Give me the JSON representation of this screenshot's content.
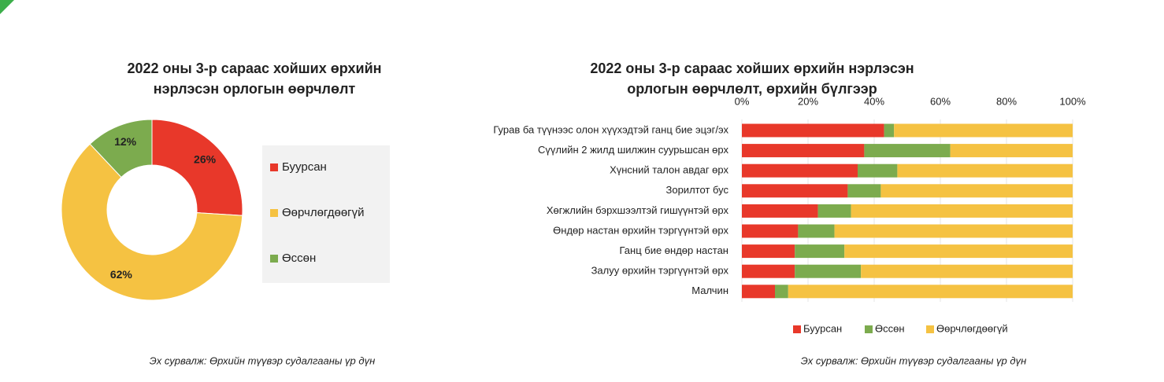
{
  "chart_data": [
    {
      "type": "donut",
      "title": "2022 оны 3-р сараас хойших өрхийн\nнэрлэсэн орлогын өөрчлөлт",
      "categories": [
        "Буурсан",
        "Өөрчлөгдөөгүй",
        "Өссөн"
      ],
      "values": [
        26,
        62,
        12
      ],
      "value_labels": [
        "26%",
        "62%",
        "12%"
      ],
      "colors": [
        "#e8382a",
        "#f5c242",
        "#7cab4e"
      ],
      "source": "Эх сурвалж: Өрхийн түүвэр  судалгааны үр дүн"
    },
    {
      "type": "stacked_barh",
      "title": "2022 оны 3-р сараас хойших өрхийн нэрлэсэн\nорлогын өөрчлөлт, өрхийн бүлгээр",
      "categories": [
        "Гурав ба түүнээс олон хүүхэдтэй ганц бие эцэг/эх",
        "Сүүлийн 2 жилд шилжин суурьшсан өрх",
        "Хүнсний талон авдаг өрх",
        "Зорилтот бус",
        "Хөгжлийн бэрхшээлтэй гишүүнтэй өрх",
        "Өндөр настан өрхийн тэргүүнтэй өрх",
        "Ганц бие өндөр настан",
        "Залуу өрхийн тэргүүнтэй өрх",
        "Малчин"
      ],
      "series": [
        {
          "name": "Буурсан",
          "color": "#e8382a",
          "values": [
            43,
            37,
            35,
            32,
            23,
            17,
            16,
            16,
            10
          ]
        },
        {
          "name": "Өссөн",
          "color": "#7cab4e",
          "values": [
            3,
            26,
            12,
            10,
            10,
            11,
            15,
            20,
            4
          ]
        },
        {
          "name": "Өөрчлөгдөөгүй",
          "color": "#f5c242",
          "values": [
            54,
            37,
            53,
            58,
            67,
            72,
            69,
            64,
            86
          ]
        }
      ],
      "xlim": [
        0,
        100
      ],
      "xticks": [
        {
          "value": 0,
          "label": "0%"
        },
        {
          "value": 20,
          "label": "20%"
        },
        {
          "value": 40,
          "label": "40%"
        },
        {
          "value": 60,
          "label": "60%"
        },
        {
          "value": 80,
          "label": "80%"
        },
        {
          "value": 100,
          "label": "100%"
        }
      ],
      "grid": true,
      "source": "Эх сурвалж: Өрхийн түүвэр  судалгааны үр дүн"
    }
  ]
}
